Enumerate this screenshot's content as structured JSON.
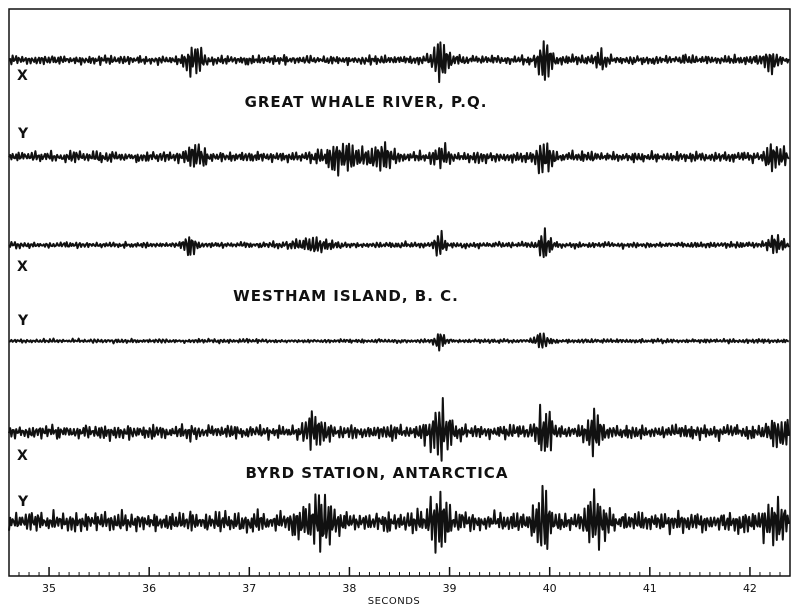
{
  "chart_data": {
    "type": "line",
    "xlabel": "SECONDS",
    "xlim": [
      34.6,
      42.4
    ],
    "xticks": [
      35,
      36,
      37,
      38,
      39,
      40,
      41,
      42
    ],
    "grid": false,
    "stations": [
      {
        "name": "GREAT WHALE RIVER, P.Q.",
        "components": [
          "X",
          "Y"
        ]
      },
      {
        "name": "WESTHAM ISLAND, B. C.",
        "components": [
          "X",
          "Y"
        ]
      },
      {
        "name": "BYRD STATION, ANTARCTICA",
        "components": [
          "X",
          "Y"
        ]
      }
    ],
    "series": [
      {
        "station": 0,
        "component": "X",
        "noise": 0.16,
        "bursts": [
          [
            36.45,
            0.09,
            0.6
          ],
          [
            38.92,
            0.08,
            0.9
          ],
          [
            39.95,
            0.07,
            1.0
          ],
          [
            40.5,
            0.05,
            0.55
          ],
          [
            42.2,
            0.08,
            0.35
          ]
        ]
      },
      {
        "station": 0,
        "component": "Y",
        "noise": 0.2,
        "bursts": [
          [
            36.45,
            0.09,
            0.55
          ],
          [
            37.92,
            0.2,
            0.55
          ],
          [
            38.3,
            0.15,
            0.5
          ],
          [
            38.92,
            0.08,
            0.5
          ],
          [
            39.95,
            0.08,
            0.8
          ],
          [
            42.25,
            0.1,
            0.55
          ]
        ]
      },
      {
        "station": 1,
        "component": "X",
        "noise": 0.12,
        "bursts": [
          [
            36.4,
            0.07,
            0.45
          ],
          [
            37.65,
            0.2,
            0.3
          ],
          [
            38.9,
            0.05,
            0.65
          ],
          [
            39.95,
            0.06,
            0.8
          ],
          [
            42.25,
            0.08,
            0.4
          ]
        ]
      },
      {
        "station": 1,
        "component": "Y",
        "noise": 0.1,
        "bursts": [
          [
            38.9,
            0.06,
            0.5
          ],
          [
            39.92,
            0.06,
            0.6
          ]
        ]
      },
      {
        "station": 2,
        "component": "X",
        "noise": 0.22,
        "bursts": [
          [
            37.65,
            0.1,
            0.6
          ],
          [
            38.9,
            0.12,
            0.9
          ],
          [
            39.95,
            0.08,
            1.0
          ],
          [
            40.45,
            0.07,
            0.75
          ],
          [
            42.3,
            0.1,
            0.5
          ]
        ]
      },
      {
        "station": 2,
        "component": "Y",
        "noise": 0.28,
        "bursts": [
          [
            37.7,
            0.18,
            0.65
          ],
          [
            38.9,
            0.1,
            1.0
          ],
          [
            39.92,
            0.08,
            1.0
          ],
          [
            40.45,
            0.1,
            0.9
          ],
          [
            42.25,
            0.12,
            0.6
          ]
        ]
      }
    ]
  }
}
